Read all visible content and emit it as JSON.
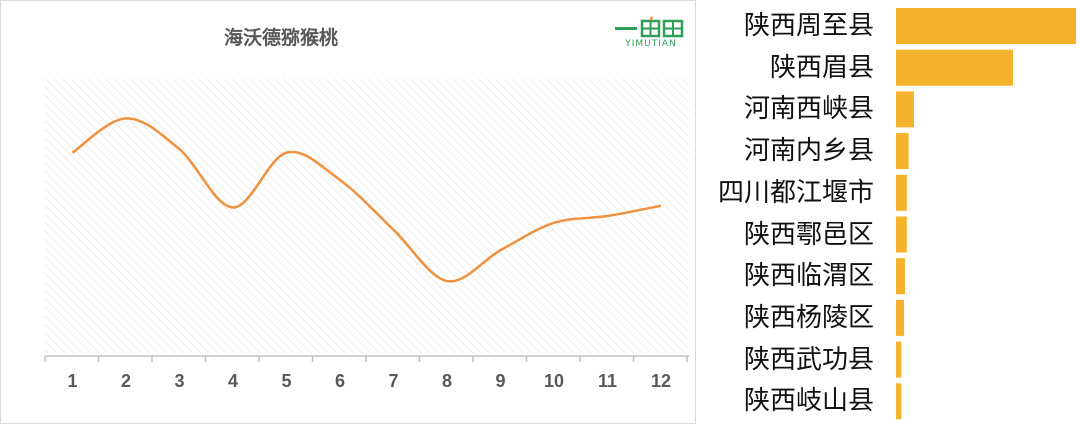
{
  "line_chart": {
    "title": "海沃德猕猴桃"
  },
  "logo": {
    "wordmark": "YIMUTIAN",
    "icon": "field-sprout-logo-icon",
    "color": "#2f9e57"
  },
  "bar_chart": {
    "color": "#f5b22c"
  },
  "chart_data": [
    {
      "type": "line",
      "title": "海沃德猕猴桃",
      "xlabel": "",
      "ylabel": "",
      "categories": [
        "1",
        "2",
        "3",
        "4",
        "5",
        "6",
        "7",
        "8",
        "9",
        "10",
        "11",
        "12"
      ],
      "values": [
        33.5,
        43.5,
        34.5,
        17.5,
        33.5,
        25.5,
        11.0,
        -4.0,
        5.0,
        13.0,
        15.0,
        18.0
      ],
      "ylim": [
        -25,
        55
      ],
      "y_ticks_visible": false,
      "grid": "hatched background",
      "line_color": "#f0913f",
      "smooth": true
    },
    {
      "type": "bar",
      "orientation": "horizontal",
      "categories": [
        "陕西周至县",
        "陕西眉县",
        "河南西峡县",
        "河南内乡县",
        "四川都江堰市",
        "陕西鄠邑区",
        "陕西临渭区",
        "陕西杨陵区",
        "陕西武功县",
        "陕西岐山县"
      ],
      "values": [
        100,
        65,
        10,
        7,
        6,
        6,
        5,
        4.5,
        3,
        3
      ],
      "xlim": [
        0,
        100
      ],
      "axis_ticks_visible": false,
      "color": "#f5b22c"
    }
  ]
}
